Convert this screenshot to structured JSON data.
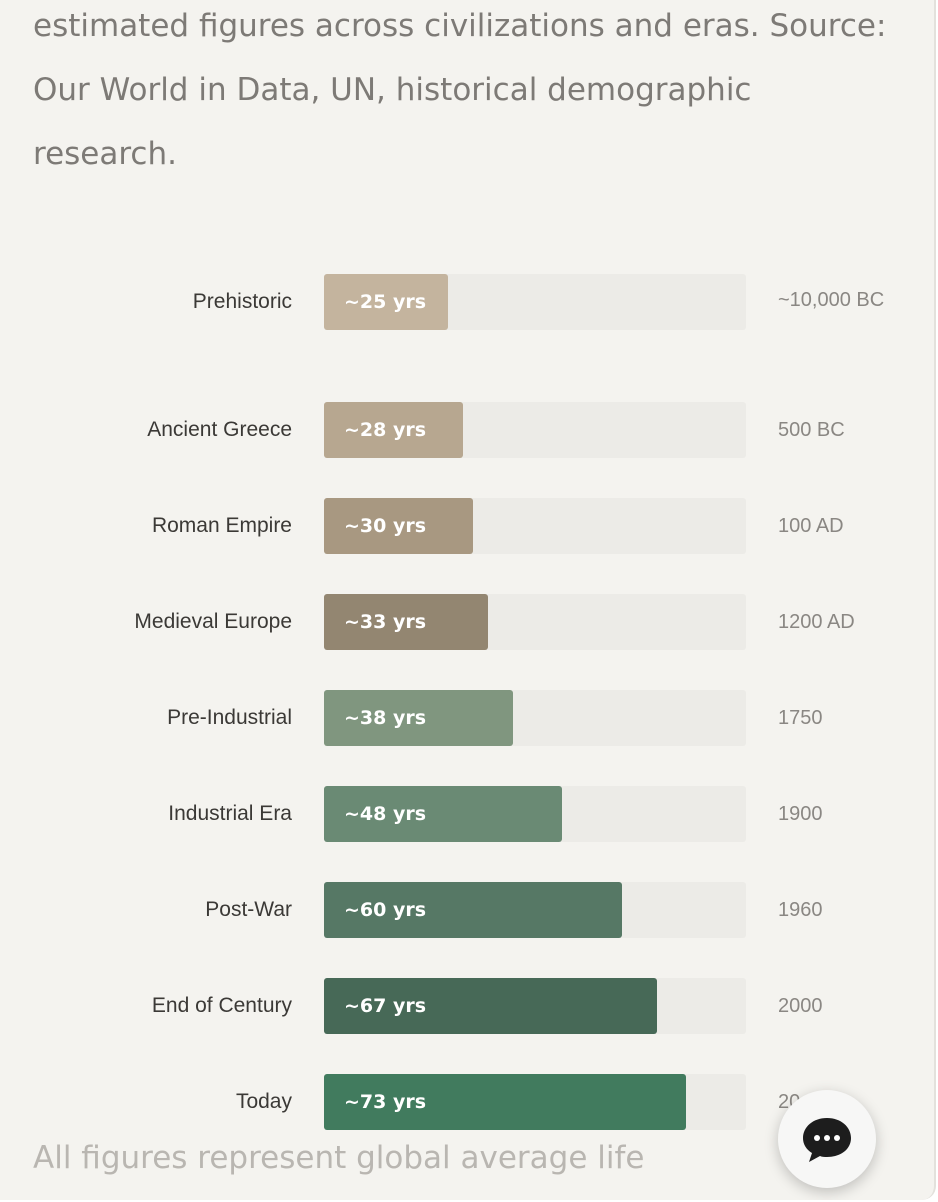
{
  "description": {
    "text": "estimated figures across civilizations and eras. Source: Our World in Data, UN, historical demographic research."
  },
  "chart_data": {
    "type": "bar",
    "orientation": "horizontal",
    "categories": [
      "Prehistoric",
      "Ancient Greece",
      "Roman Empire",
      "Medieval Europe",
      "Pre-Industrial",
      "Industrial Era",
      "Post-War",
      "End of Century",
      "Today"
    ],
    "values": [
      25,
      28,
      30,
      33,
      38,
      48,
      60,
      67,
      73
    ],
    "value_labels": [
      "~25 yrs",
      "~28 yrs",
      "~30 yrs",
      "~33 yrs",
      "~38 yrs",
      "~48 yrs",
      "~60 yrs",
      "~67 yrs",
      "~73 yrs"
    ],
    "eras": [
      "~10,000 BC",
      "500 BC",
      "100 AD",
      "1200 AD",
      "1750",
      "1900",
      "1960",
      "2000",
      "20"
    ],
    "colors": [
      "#c4b49e",
      "#b7a790",
      "#a89881",
      "#938671",
      "#80967f",
      "#6a8a74",
      "#567865",
      "#476957",
      "#417b5e"
    ],
    "xlim": [
      0,
      85
    ],
    "title": "",
    "xlabel": "",
    "ylabel": ""
  },
  "footnote": {
    "text": "All figures represent global average life"
  },
  "chat": {
    "icon": "chat-bubble-icon"
  }
}
